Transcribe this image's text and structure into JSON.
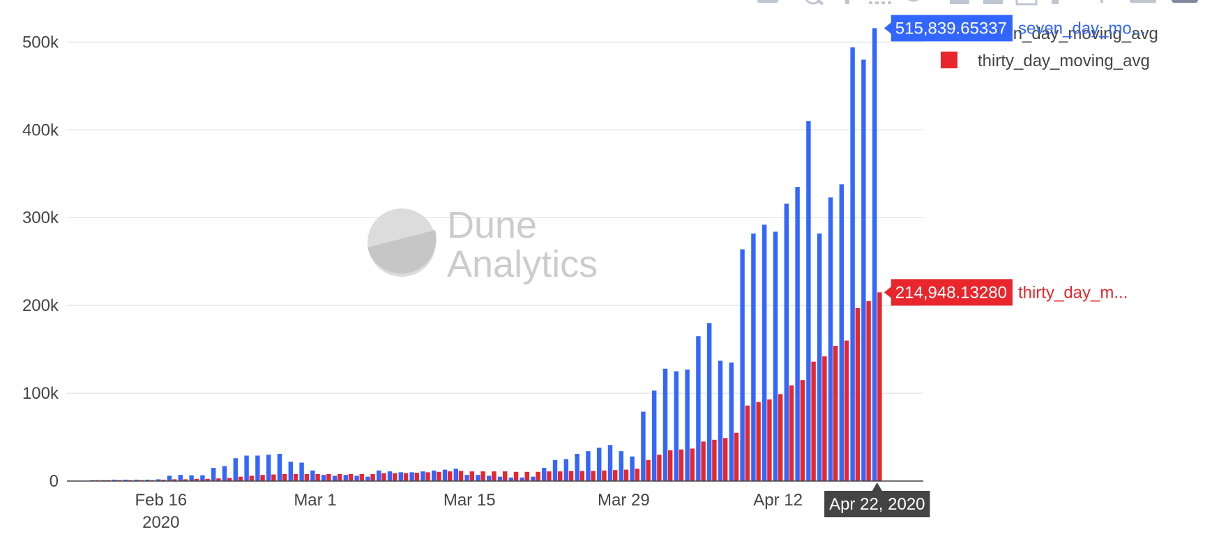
{
  "watermark": {
    "line1": "Dune",
    "line2": "Analytics"
  },
  "legend": {
    "items": [
      {
        "label": "seven_day_moving_avg",
        "color": "#3366ff"
      },
      {
        "label": "thirty_day_moving_avg",
        "color": "#e8262c"
      }
    ]
  },
  "hover": {
    "x_label": "Apr 22, 2020",
    "seven": {
      "value": "515,839.65337",
      "name": "seven_day_mo..."
    },
    "thirty": {
      "value": "214,948.13280",
      "name": "thirty_day_m..."
    }
  },
  "modebar": {
    "icons": [
      "camera-icon",
      "zoom-icon",
      "pan-icon",
      "select-icon",
      "lasso-icon",
      "zoom-in-icon",
      "zoom-out-icon",
      "autoscale-icon",
      "reset-axes-icon",
      "spike-icon",
      "hover-closest-icon",
      "hover-compare-icon"
    ]
  },
  "chart_data": {
    "type": "bar",
    "barmode": "group",
    "x_start": "2020-02-10",
    "x_end": "2020-04-22",
    "xticks": [
      {
        "date": "2020-02-16",
        "label": "Feb 16",
        "sublabel": "2020"
      },
      {
        "date": "2020-03-01",
        "label": "Mar 1",
        "sublabel": ""
      },
      {
        "date": "2020-03-15",
        "label": "Mar 15",
        "sublabel": ""
      },
      {
        "date": "2020-03-29",
        "label": "Mar 29",
        "sublabel": ""
      },
      {
        "date": "2020-04-12",
        "label": "Apr 12",
        "sublabel": ""
      }
    ],
    "yticks": [
      {
        "value": 0,
        "label": "0"
      },
      {
        "value": 100000,
        "label": "100k"
      },
      {
        "value": 200000,
        "label": "200k"
      },
      {
        "value": 300000,
        "label": "300k"
      },
      {
        "value": 400000,
        "label": "400k"
      },
      {
        "value": 500000,
        "label": "500k"
      }
    ],
    "ylim": [
      0,
      540000
    ],
    "grid": true,
    "legend_position": "top-right",
    "series": [
      {
        "name": "seven_day_moving_avg",
        "color": "#3366ff",
        "values": [
          1000,
          1000,
          1500,
          1500,
          1500,
          1500,
          2000,
          6000,
          7000,
          6500,
          6500,
          15000,
          17000,
          26000,
          29000,
          29000,
          30000,
          31000,
          22000,
          21000,
          12000,
          7000,
          6000,
          7000,
          6000,
          5000,
          12000,
          11000,
          10000,
          10000,
          11000,
          12000,
          13000,
          14000,
          7000,
          7000,
          6000,
          5000,
          4000,
          4000,
          5000,
          15000,
          24000,
          25000,
          31000,
          34000,
          38000,
          41000,
          34000,
          28000,
          79000,
          103000,
          128000,
          125000,
          127000,
          165000,
          180000,
          137000,
          135000,
          264000,
          282000,
          292000,
          284000,
          316000,
          335000,
          410000,
          282000,
          323000,
          338000,
          494000,
          480000,
          515839.65337
        ]
      },
      {
        "name": "thirty_day_moving_avg",
        "color": "#e8262c",
        "values": [
          1000,
          1000,
          1000,
          1000,
          1000,
          1000,
          1500,
          2000,
          2000,
          2500,
          2500,
          3000,
          3500,
          5000,
          6000,
          7000,
          7500,
          8000,
          8000,
          8000,
          8000,
          8000,
          8000,
          8000,
          8000,
          8000,
          9000,
          9000,
          9000,
          9500,
          10000,
          10500,
          11000,
          11500,
          11000,
          11000,
          11000,
          11000,
          10500,
          10500,
          10500,
          11000,
          11000,
          11500,
          11500,
          11500,
          12000,
          12500,
          13000,
          14000,
          24000,
          30000,
          35000,
          36000,
          37000,
          45000,
          47000,
          49000,
          55000,
          86000,
          90000,
          93000,
          99000,
          109000,
          115000,
          136000,
          142000,
          154000,
          160000,
          197000,
          205000,
          214948.1328
        ]
      }
    ]
  }
}
